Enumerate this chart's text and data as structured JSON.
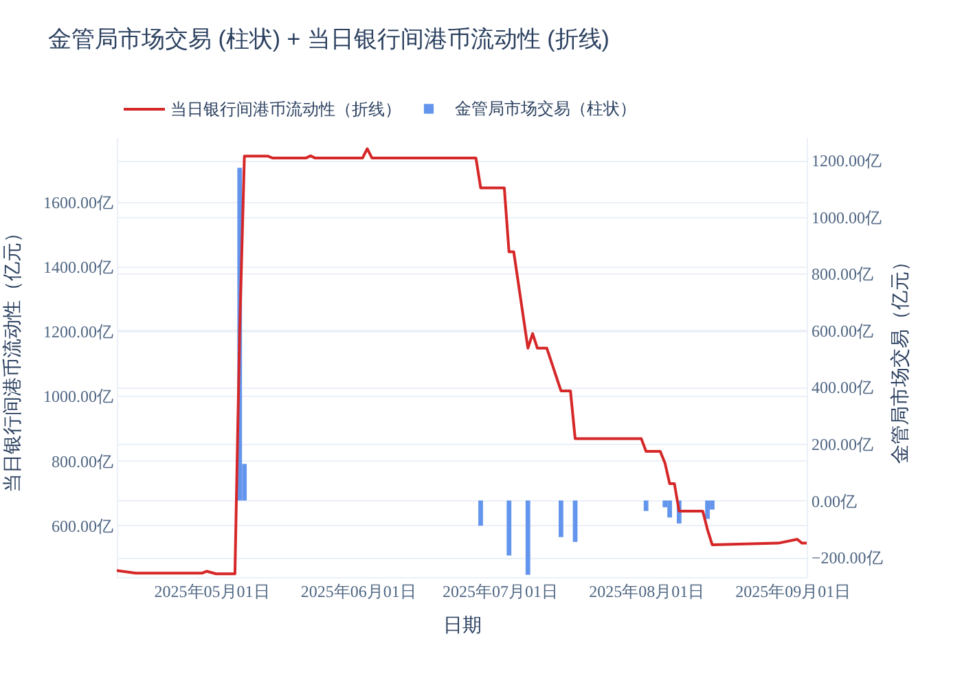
{
  "chart_data": {
    "type": "line",
    "title": "金管局市场交易 (柱状) + 当日银行间港币流动性 (折线)",
    "xlabel": "日期",
    "ylabel": "当日银行间港币流动性（亿元）",
    "y2label": "金管局市场交易（亿元）",
    "series": [
      {
        "name": "当日银行间港币流动性（折线）",
        "color": "#d62728",
        "x": [
          "2025-04-11",
          "2025-04-15",
          "2025-04-29",
          "2025-04-30",
          "2025-05-02",
          "2025-05-06",
          "2025-05-07",
          "2025-05-08",
          "2025-05-13",
          "2025-05-14",
          "2025-05-21",
          "2025-05-22",
          "2025-05-23",
          "2025-06-02",
          "2025-06-03",
          "2025-06-04",
          "2025-06-26",
          "2025-06-27",
          "2025-07-02",
          "2025-07-03",
          "2025-07-04",
          "2025-07-07",
          "2025-07-08",
          "2025-07-09",
          "2025-07-11",
          "2025-07-14",
          "2025-07-16",
          "2025-07-17",
          "2025-07-31",
          "2025-08-01",
          "2025-08-04",
          "2025-08-05",
          "2025-08-06",
          "2025-08-07",
          "2025-08-08",
          "2025-08-13",
          "2025-08-14",
          "2025-08-15",
          "2025-08-29",
          "2025-09-02",
          "2025-09-03",
          "2025-09-04"
        ],
        "values": [
          460,
          452,
          452,
          458,
          450,
          450,
          1200,
          1742,
          1742,
          1736,
          1736,
          1743,
          1736,
          1736,
          1765,
          1736,
          1736,
          1644,
          1644,
          1446,
          1446,
          1148,
          1193,
          1148,
          1148,
          1016,
          1016,
          868,
          868,
          829,
          829,
          793,
          729,
          729,
          644,
          644,
          587,
          540,
          545,
          557,
          545,
          545
        ]
      },
      {
        "name": "金管局市场交易（柱状）",
        "type": "bar",
        "axis": "y2",
        "color": "#6495ed",
        "x": [
          "2025-05-07",
          "2025-05-08",
          "2025-06-27",
          "2025-07-03",
          "2025-07-07",
          "2025-07-14",
          "2025-07-17",
          "2025-08-01",
          "2025-08-05",
          "2025-08-06",
          "2025-08-08",
          "2025-08-14",
          "2025-08-15"
        ],
        "values": [
          1173,
          129,
          -89,
          -194,
          -262,
          -129,
          -146,
          -37,
          -24,
          -60,
          -81,
          -65,
          -32
        ]
      }
    ],
    "xlim": [
      "2025-04-11",
      "2025-09-04"
    ],
    "xticks": [
      {
        "value": "2025-05-01",
        "label": "2025年05月01日"
      },
      {
        "value": "2025-06-01",
        "label": "2025年06月01日"
      },
      {
        "value": "2025-07-01",
        "label": "2025年07月01日"
      },
      {
        "value": "2025-08-01",
        "label": "2025年08月01日"
      },
      {
        "value": "2025-09-01",
        "label": "2025年09月01日"
      }
    ],
    "ylim": [
      440,
      1800
    ],
    "yticks": [
      {
        "value": 600,
        "label": "600.00亿"
      },
      {
        "value": 800,
        "label": "800.00亿"
      },
      {
        "value": 1000,
        "label": "1000.00亿"
      },
      {
        "value": 1200,
        "label": "1200.00亿"
      },
      {
        "value": 1400,
        "label": "1400.00亿"
      },
      {
        "value": 1600,
        "label": "1600.00亿"
      }
    ],
    "y2lim": [
      -270,
      1280
    ],
    "y2ticks": [
      {
        "value": -200,
        "label": "−200.00亿"
      },
      {
        "value": 0,
        "label": "0.00亿"
      },
      {
        "value": 200,
        "label": "200.00亿"
      },
      {
        "value": 400,
        "label": "400.00亿"
      },
      {
        "value": 600,
        "label": "600.00亿"
      },
      {
        "value": 800,
        "label": "800.00亿"
      },
      {
        "value": 1000,
        "label": "1000.00亿"
      },
      {
        "value": 1200,
        "label": "1200.00亿"
      }
    ],
    "grid": "y",
    "legend": "top left"
  }
}
